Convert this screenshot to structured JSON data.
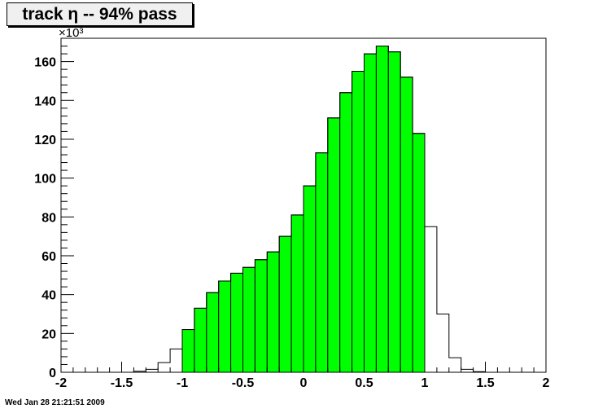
{
  "header": {
    "title": "track η -- 94% pass"
  },
  "footer": {
    "timestamp": "Wed Jan 28 21:21:51 2009"
  },
  "axes": {
    "y_exponent": "×10³"
  },
  "colors": {
    "pass_fill": "#00ff00",
    "outline": "#000000",
    "background": "#ffffff"
  },
  "chart_data": {
    "type": "bar",
    "title": "track η -- 94% pass",
    "xlim": [
      -2,
      2
    ],
    "ylim": [
      0,
      172
    ],
    "y_multiplier": 1000,
    "bin_width": 0.1,
    "x_ticks": [
      {
        "value": -2,
        "label": "-2"
      },
      {
        "value": -1.5,
        "label": "-1.5"
      },
      {
        "value": -1,
        "label": "-1"
      },
      {
        "value": -0.5,
        "label": "-0.5"
      },
      {
        "value": 0,
        "label": "0"
      },
      {
        "value": 0.5,
        "label": "0.5"
      },
      {
        "value": 1,
        "label": "1"
      },
      {
        "value": 1.5,
        "label": "1.5"
      },
      {
        "value": 2,
        "label": "2"
      }
    ],
    "y_ticks": [
      {
        "value": 0,
        "label": "0"
      },
      {
        "value": 20,
        "label": "20"
      },
      {
        "value": 40,
        "label": "40"
      },
      {
        "value": 60,
        "label": "60"
      },
      {
        "value": 80,
        "label": "80"
      },
      {
        "value": 100,
        "label": "100"
      },
      {
        "value": 120,
        "label": "120"
      },
      {
        "value": 140,
        "label": "140"
      },
      {
        "value": 160,
        "label": "160"
      }
    ],
    "grid": false,
    "series": [
      {
        "role": "all",
        "style": "outline",
        "bins": [
          {
            "x": -1.4,
            "y": 0.5
          },
          {
            "x": -1.3,
            "y": 1.5
          },
          {
            "x": -1.2,
            "y": 5
          },
          {
            "x": -1.1,
            "y": 12
          },
          {
            "x": -1.0,
            "y": 22
          },
          {
            "x": -0.9,
            "y": 33
          },
          {
            "x": -0.8,
            "y": 41
          },
          {
            "x": -0.7,
            "y": 47
          },
          {
            "x": -0.6,
            "y": 51
          },
          {
            "x": -0.5,
            "y": 54
          },
          {
            "x": -0.4,
            "y": 58
          },
          {
            "x": -0.3,
            "y": 62
          },
          {
            "x": -0.2,
            "y": 70
          },
          {
            "x": -0.1,
            "y": 81
          },
          {
            "x": 0.0,
            "y": 96
          },
          {
            "x": 0.1,
            "y": 113
          },
          {
            "x": 0.2,
            "y": 131
          },
          {
            "x": 0.3,
            "y": 144
          },
          {
            "x": 0.4,
            "y": 155
          },
          {
            "x": 0.5,
            "y": 164
          },
          {
            "x": 0.6,
            "y": 168
          },
          {
            "x": 0.7,
            "y": 165
          },
          {
            "x": 0.8,
            "y": 152
          },
          {
            "x": 0.9,
            "y": 123
          },
          {
            "x": 1.0,
            "y": 75
          },
          {
            "x": 1.1,
            "y": 30
          },
          {
            "x": 1.2,
            "y": 7.5
          },
          {
            "x": 1.3,
            "y": 1.5
          },
          {
            "x": 1.4,
            "y": 0.3
          }
        ]
      },
      {
        "role": "pass",
        "style": "filled",
        "color": "#00ff00",
        "bins": [
          {
            "x": -1.0,
            "y": 22
          },
          {
            "x": -0.9,
            "y": 33
          },
          {
            "x": -0.8,
            "y": 41
          },
          {
            "x": -0.7,
            "y": 47
          },
          {
            "x": -0.6,
            "y": 51
          },
          {
            "x": -0.5,
            "y": 54
          },
          {
            "x": -0.4,
            "y": 58
          },
          {
            "x": -0.3,
            "y": 62
          },
          {
            "x": -0.2,
            "y": 70
          },
          {
            "x": -0.1,
            "y": 81
          },
          {
            "x": 0.0,
            "y": 96
          },
          {
            "x": 0.1,
            "y": 113
          },
          {
            "x": 0.2,
            "y": 131
          },
          {
            "x": 0.3,
            "y": 144
          },
          {
            "x": 0.4,
            "y": 155
          },
          {
            "x": 0.5,
            "y": 164
          },
          {
            "x": 0.6,
            "y": 168
          },
          {
            "x": 0.7,
            "y": 165
          },
          {
            "x": 0.8,
            "y": 152
          },
          {
            "x": 0.9,
            "y": 123
          }
        ]
      }
    ]
  }
}
